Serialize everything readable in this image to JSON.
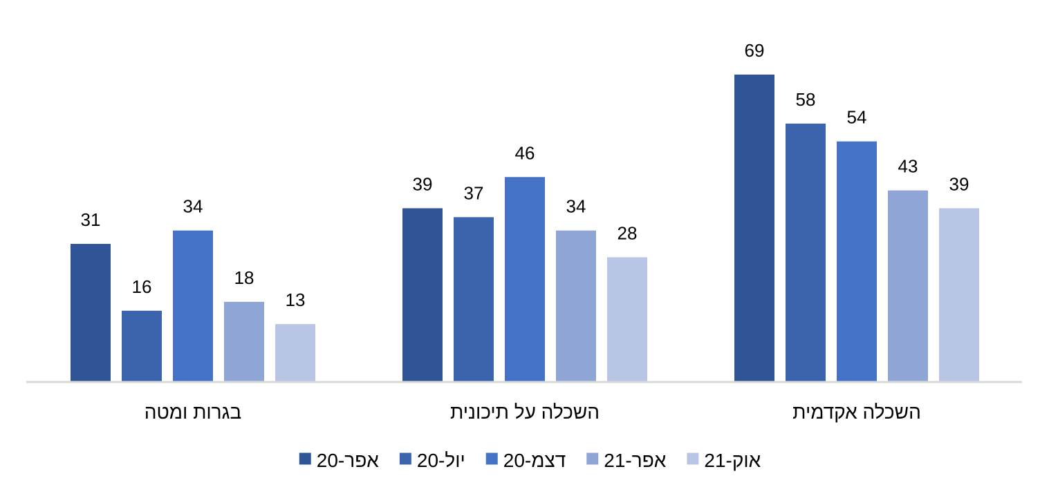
{
  "chart_data": {
    "type": "bar",
    "categories": [
      "השכלה אקדמית",
      "השכלה על תיכונית",
      "בגרות ומטה"
    ],
    "category_order_display": "rtl",
    "series": [
      {
        "name": "אפר-20",
        "values": [
          69,
          39,
          31
        ],
        "color": "#2f5597"
      },
      {
        "name": "יול-20",
        "values": [
          58,
          37,
          16
        ],
        "color": "#3b64ad"
      },
      {
        "name": "דצמ-20",
        "values": [
          54,
          46,
          34
        ],
        "color": "#4472c4"
      },
      {
        "name": "אפר-21",
        "values": [
          43,
          34,
          18
        ],
        "color": "#8fa5d6"
      },
      {
        "name": "אוק-21",
        "values": [
          39,
          28,
          13
        ],
        "color": "#b9c5e4"
      }
    ],
    "data_labels": true,
    "gridlines": false,
    "legend_position": "bottom",
    "axis_line_color": "#d9d9d9",
    "ylim": [
      0,
      72
    ]
  }
}
